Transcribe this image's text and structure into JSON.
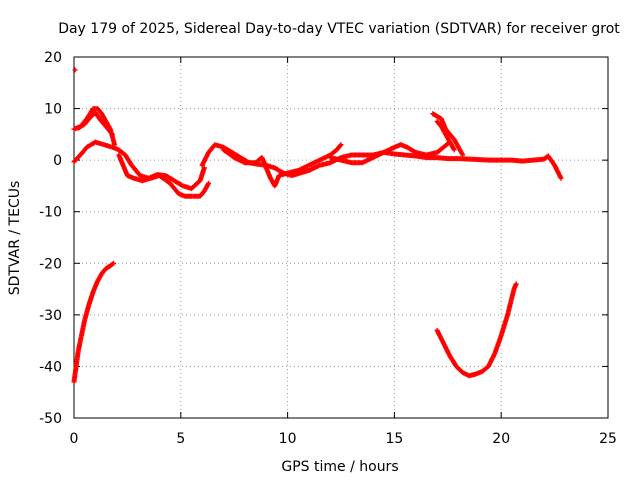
{
  "chart_data": {
    "type": "scatter",
    "title": "Day 179 of 2025, Sidereal Day-to-day VTEC variation (SDTVAR) for receiver grot",
    "xlabel": "GPS time / hours",
    "ylabel": "SDTVAR / TECUs",
    "xlim": [
      0,
      25
    ],
    "ylim": [
      -50,
      20
    ],
    "xticks": [
      0,
      5,
      10,
      15,
      20,
      25
    ],
    "yticks": [
      -50,
      -40,
      -30,
      -20,
      -10,
      0,
      10,
      20
    ],
    "grid": true,
    "legend": "none",
    "marker": "plus",
    "series": [
      {
        "name": "trace-a",
        "color": "#ff0000",
        "points": [
          [
            0,
            6
          ],
          [
            0.3,
            6.5
          ],
          [
            0.6,
            8
          ],
          [
            0.9,
            10
          ],
          [
            1.1,
            10
          ],
          [
            1.3,
            9
          ],
          [
            1.5,
            7.5
          ],
          [
            1.7,
            6
          ],
          [
            1.9,
            3
          ]
        ]
      },
      {
        "name": "trace-b",
        "color": "#ff0000",
        "points": [
          [
            0.2,
            6.2
          ],
          [
            0.5,
            7
          ],
          [
            0.8,
            8.5
          ],
          [
            1.0,
            9.2
          ],
          [
            1.2,
            8
          ],
          [
            1.5,
            6.5
          ],
          [
            1.8,
            5
          ]
        ]
      },
      {
        "name": "trace-c",
        "color": "#ff0000",
        "points": [
          [
            0,
            -0.3
          ],
          [
            0.3,
            1
          ],
          [
            0.6,
            2.5
          ],
          [
            1.0,
            3.5
          ],
          [
            1.4,
            3
          ],
          [
            1.8,
            2.5
          ],
          [
            2.1,
            2
          ],
          [
            2.4,
            1
          ],
          [
            2.7,
            -1
          ],
          [
            3.1,
            -3
          ],
          [
            3.5,
            -3.5
          ],
          [
            3.9,
            -2.8
          ],
          [
            4.3,
            -3
          ],
          [
            4.7,
            -4
          ],
          [
            5.1,
            -5
          ],
          [
            5.5,
            -5.5
          ],
          [
            5.9,
            -4
          ],
          [
            6.1,
            -1.5
          ]
        ]
      },
      {
        "name": "trace-d",
        "color": "#ff0000",
        "points": [
          [
            2.1,
            1
          ],
          [
            2.3,
            -1
          ],
          [
            2.5,
            -3
          ],
          [
            2.8,
            -3.5
          ],
          [
            3.2,
            -4
          ],
          [
            3.6,
            -3.5
          ],
          [
            4.0,
            -3
          ],
          [
            4.5,
            -4.5
          ],
          [
            4.9,
            -6.5
          ],
          [
            5.2,
            -7
          ],
          [
            5.5,
            -7
          ],
          [
            5.9,
            -7
          ],
          [
            6.1,
            -6
          ],
          [
            6.3,
            -4.5
          ]
        ]
      },
      {
        "name": "trace-e",
        "color": "#ff0000",
        "points": [
          [
            6.0,
            -1
          ],
          [
            6.3,
            1.5
          ],
          [
            6.6,
            3
          ],
          [
            7.0,
            2.5
          ],
          [
            7.4,
            1.5
          ],
          [
            7.8,
            0.5
          ],
          [
            8.2,
            -0.5
          ],
          [
            8.6,
            -0.8
          ],
          [
            9.0,
            -1
          ],
          [
            9.4,
            -1.5
          ],
          [
            9.8,
            -2.5
          ],
          [
            10.2,
            -3
          ],
          [
            10.6,
            -2.5
          ],
          [
            11.0,
            -2
          ],
          [
            11.5,
            -1
          ],
          [
            12.0,
            -0.5
          ],
          [
            12.5,
            0.5
          ],
          [
            13.0,
            1
          ],
          [
            13.5,
            1
          ],
          [
            14.0,
            1
          ],
          [
            14.5,
            1.5
          ],
          [
            15.0,
            1.2
          ],
          [
            15.5,
            1
          ],
          [
            16.0,
            0.8
          ],
          [
            16.5,
            0.5
          ],
          [
            17.0,
            0.5
          ],
          [
            17.5,
            0.3
          ],
          [
            18.0,
            0.3
          ],
          [
            18.5,
            0.2
          ],
          [
            19.0,
            0.1
          ],
          [
            19.5,
            0
          ],
          [
            20.0,
            0
          ],
          [
            20.5,
            0
          ],
          [
            21.0,
            -0.2
          ],
          [
            21.5,
            0
          ],
          [
            22.0,
            0.2
          ],
          [
            22.2,
            0.8
          ],
          [
            22.5,
            -1
          ],
          [
            22.8,
            -3.5
          ]
        ]
      },
      {
        "name": "trace-f",
        "color": "#ff0000",
        "points": [
          [
            7.0,
            2
          ],
          [
            7.5,
            0.5
          ],
          [
            8.0,
            -0.5
          ],
          [
            8.5,
            -0.5
          ],
          [
            8.8,
            0.5
          ],
          [
            9.0,
            -1.5
          ],
          [
            9.2,
            -3.5
          ],
          [
            9.4,
            -5
          ],
          [
            9.6,
            -3
          ],
          [
            10.0,
            -2.5
          ],
          [
            10.5,
            -2
          ],
          [
            11.0,
            -1
          ],
          [
            11.5,
            0
          ],
          [
            12.0,
            1
          ],
          [
            12.3,
            2
          ],
          [
            12.5,
            3
          ]
        ]
      },
      {
        "name": "trace-g",
        "color": "#ff0000",
        "points": [
          [
            12.0,
            0.5
          ],
          [
            12.5,
            0
          ],
          [
            13.0,
            -0.5
          ],
          [
            13.5,
            -0.5
          ],
          [
            14.0,
            0.5
          ],
          [
            14.5,
            1.5
          ],
          [
            15.0,
            2.5
          ],
          [
            15.3,
            3
          ],
          [
            15.6,
            2.5
          ],
          [
            16.0,
            1.5
          ],
          [
            16.5,
            1
          ],
          [
            17.0,
            1.5
          ],
          [
            17.3,
            2.5
          ],
          [
            17.6,
            3.5
          ]
        ]
      },
      {
        "name": "trace-h",
        "color": "#ff0000",
        "points": [
          [
            16.8,
            9
          ],
          [
            17.0,
            8.5
          ],
          [
            17.2,
            8
          ],
          [
            17.4,
            6
          ],
          [
            17.6,
            5
          ],
          [
            17.8,
            4
          ],
          [
            18.0,
            2.5
          ],
          [
            18.2,
            1
          ]
        ]
      },
      {
        "name": "trace-i",
        "color": "#ff0000",
        "points": [
          [
            17.0,
            7.5
          ],
          [
            17.2,
            6.5
          ],
          [
            17.4,
            5
          ],
          [
            17.6,
            3.5
          ],
          [
            17.8,
            2
          ]
        ]
      },
      {
        "name": "trace-j",
        "color": "#ff0000",
        "points": [
          [
            0.05,
            17.5
          ]
        ]
      },
      {
        "name": "trace-k",
        "color": "#ff0000",
        "points": [
          [
            0,
            -43
          ],
          [
            0.1,
            -40
          ],
          [
            0.2,
            -37
          ],
          [
            0.35,
            -34
          ],
          [
            0.5,
            -31
          ],
          [
            0.7,
            -28
          ],
          [
            0.9,
            -25.5
          ],
          [
            1.1,
            -23.5
          ],
          [
            1.3,
            -22
          ],
          [
            1.5,
            -21
          ],
          [
            1.7,
            -20.5
          ],
          [
            1.85,
            -20
          ]
        ]
      },
      {
        "name": "trace-l",
        "color": "#ff0000",
        "points": [
          [
            17.0,
            -33
          ],
          [
            17.3,
            -35.5
          ],
          [
            17.6,
            -38
          ],
          [
            17.9,
            -40
          ],
          [
            18.2,
            -41.2
          ],
          [
            18.5,
            -41.8
          ],
          [
            18.8,
            -41.5
          ],
          [
            19.1,
            -41
          ],
          [
            19.4,
            -40
          ],
          [
            19.7,
            -37.5
          ],
          [
            20.0,
            -34
          ],
          [
            20.3,
            -30
          ],
          [
            20.6,
            -25
          ],
          [
            20.7,
            -24
          ]
        ]
      }
    ]
  }
}
